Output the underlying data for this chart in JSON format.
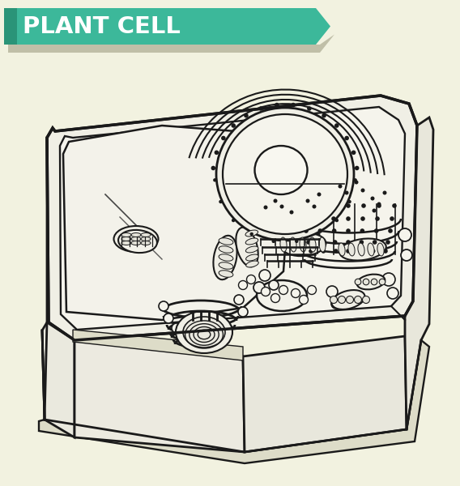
{
  "bg_color": "#f2f2e0",
  "banner_color": "#3cb89a",
  "banner_dark": "#2a9478",
  "banner_text": "PLANT CELL",
  "banner_text_color": "#ffffff",
  "cell_line_color": "#1a1a1a",
  "cell_fill": "#f5f4ec",
  "front_fill": "#eeedE2",
  "right_fill": "#e8e7db",
  "title_fontsize": 21
}
